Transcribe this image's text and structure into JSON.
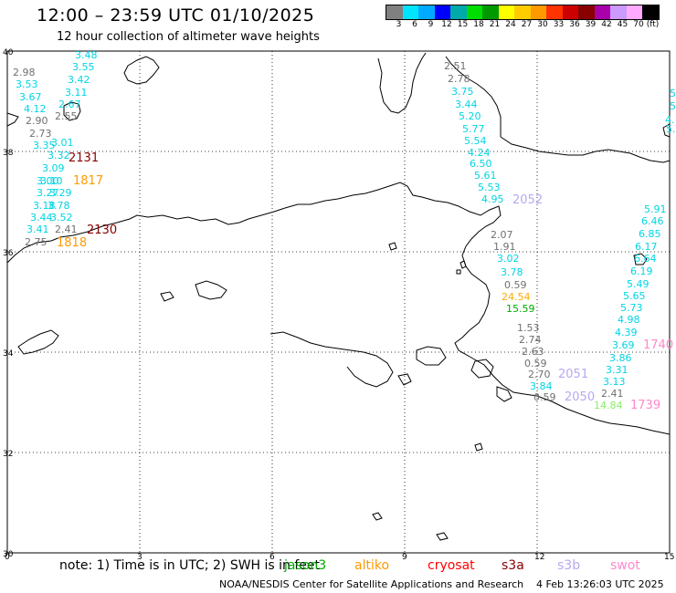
{
  "header": {
    "title": "12:00 – 23:59 UTC 01/10/2025",
    "subtitle": "12 hour collection of altimeter wave heights"
  },
  "colorbar": {
    "colors": [
      "#808080",
      "#00e5ff",
      "#00aaff",
      "#0000ff",
      "#00aaaa",
      "#00dd00",
      "#009900",
      "#ffff00",
      "#ffcc00",
      "#ff9900",
      "#ff3300",
      "#cc0000",
      "#880000",
      "#aa00aa",
      "#cc99ff",
      "#ffaaff",
      "#000000"
    ],
    "labels": [
      "3",
      "6",
      "9",
      "12",
      "15",
      "18",
      "21",
      "24",
      "27",
      "30",
      "33",
      "36",
      "39",
      "42",
      "45",
      "70",
      "(ft)"
    ]
  },
  "axes": {
    "x_ticks": [
      "0",
      "3",
      "6",
      "9",
      "12",
      "15"
    ],
    "y_ticks": [
      "40",
      "38",
      "36",
      "34",
      "32",
      "30"
    ]
  },
  "tracks": {
    "west": [
      {
        "v": "3.48",
        "c": "#00d5e5"
      },
      {
        "v": "3.55",
        "c": "#00d5e5"
      },
      {
        "v": "3.42",
        "c": "#00d5e5"
      },
      {
        "v": "3.11",
        "c": "#00d5e5"
      },
      {
        "v": "2.67",
        "c": "#00d5e5"
      },
      {
        "v": "2.55",
        "c": "#707070"
      },
      {
        "v": "2.73",
        "c": "#707070"
      },
      {
        "v": "2.98",
        "c": "#707070"
      },
      {
        "v": "3.53",
        "c": "#00d5e5"
      },
      {
        "v": "3.67",
        "c": "#00d5e5"
      },
      {
        "v": "4.12",
        "c": "#00d5e5"
      },
      {
        "v": "2.90",
        "c": "#707070"
      },
      {
        "v": "3.35",
        "c": "#00d5e5"
      },
      {
        "v": "3.01",
        "c": "#00d5e5"
      },
      {
        "v": "3.32",
        "c": "#00d5e5"
      },
      {
        "v": "3.09",
        "c": "#00d5e5"
      },
      {
        "v": "3.10",
        "c": "#00d5e5"
      },
      {
        "v": "3.00",
        "c": "#00d5e5"
      },
      {
        "v": "3.29",
        "c": "#00d5e5"
      },
      {
        "v": "3.27",
        "c": "#00d5e5"
      },
      {
        "v": "3.18",
        "c": "#00d5e5"
      },
      {
        "v": "3.78",
        "c": "#00d5e5"
      },
      {
        "v": "3.44",
        "c": "#00d5e5"
      },
      {
        "v": "3.52",
        "c": "#00d5e5"
      },
      {
        "v": "3.41",
        "c": "#00d5e5"
      },
      {
        "v": "2.41",
        "c": "#707070"
      },
      {
        "v": "2.75",
        "c": "#707070"
      }
    ],
    "central": [
      {
        "v": "2.51",
        "c": "#707070"
      },
      {
        "v": "2.78",
        "c": "#707070"
      },
      {
        "v": "3.75",
        "c": "#00d5e5"
      },
      {
        "v": "3.44",
        "c": "#00d5e5"
      },
      {
        "v": "5.20",
        "c": "#00d5e5"
      },
      {
        "v": "5.77",
        "c": "#00d5e5"
      },
      {
        "v": "5.54",
        "c": "#00d5e5"
      },
      {
        "v": "4.24",
        "c": "#00d5e5"
      },
      {
        "v": "6.50",
        "c": "#00d5e5"
      },
      {
        "v": "5.61",
        "c": "#00d5e5"
      },
      {
        "v": "5.53",
        "c": "#00d5e5"
      },
      {
        "v": "4.95",
        "c": "#00d5e5"
      }
    ],
    "coastal": [
      {
        "v": "2.07",
        "c": "#707070"
      },
      {
        "v": "1.91",
        "c": "#707070"
      },
      {
        "v": "3.02",
        "c": "#00d5e5"
      },
      {
        "v": "3.78",
        "c": "#00d5e5"
      },
      {
        "v": "0.59",
        "c": "#707070"
      },
      {
        "v": "24.54",
        "c": "#ffaa00"
      },
      {
        "v": "15.59",
        "c": "#00aa00"
      },
      {
        "v": "1.53",
        "c": "#707070"
      },
      {
        "v": "2.74",
        "c": "#707070"
      },
      {
        "v": "2.63",
        "c": "#707070"
      },
      {
        "v": "0.59",
        "c": "#707070"
      },
      {
        "v": "2.70",
        "c": "#707070"
      },
      {
        "v": "3.84",
        "c": "#00d5e5"
      },
      {
        "v": "0.59",
        "c": "#707070"
      },
      {
        "v": "2.41",
        "c": "#707070"
      },
      {
        "v": "14.84",
        "c": "#88ee66"
      }
    ],
    "east": [
      {
        "v": "5.91",
        "c": "#00d5e5"
      },
      {
        "v": "6.46",
        "c": "#00d5e5"
      },
      {
        "v": "6.85",
        "c": "#00d5e5"
      },
      {
        "v": "6.17",
        "c": "#00d5e5"
      },
      {
        "v": "6.64",
        "c": "#00d5e5"
      },
      {
        "v": "6.19",
        "c": "#00d5e5"
      },
      {
        "v": "5.49",
        "c": "#00d5e5"
      },
      {
        "v": "5.65",
        "c": "#00d5e5"
      },
      {
        "v": "5.73",
        "c": "#00d5e5"
      },
      {
        "v": "4.98",
        "c": "#00d5e5"
      },
      {
        "v": "4.39",
        "c": "#00d5e5"
      },
      {
        "v": "3.69",
        "c": "#00d5e5"
      },
      {
        "v": "3.86",
        "c": "#00d5e5"
      },
      {
        "v": "3.31",
        "c": "#00d5e5"
      },
      {
        "v": "3.13",
        "c": "#00d5e5"
      }
    ],
    "edge": [
      {
        "v": "5.",
        "c": "#00d5e5"
      },
      {
        "v": "5.",
        "c": "#00d5e5"
      },
      {
        "v": "4.",
        "c": "#00d5e5"
      },
      {
        "v": "5.",
        "c": "#00d5e5"
      }
    ]
  },
  "pass_times": [
    {
      "t": "2131",
      "c": "#880000"
    },
    {
      "t": "1817",
      "c": "#ff9900"
    },
    {
      "t": "2130",
      "c": "#880000"
    },
    {
      "t": "1818",
      "c": "#ff9900"
    },
    {
      "t": "2052",
      "c": "#b8a8f0"
    },
    {
      "t": "2051",
      "c": "#b8a8f0"
    },
    {
      "t": "2050",
      "c": "#b8a8f0"
    },
    {
      "t": "1740",
      "c": "#ff88cc"
    },
    {
      "t": "1739",
      "c": "#ff88cc"
    }
  ],
  "footer": {
    "note": "note: 1) Time is in UTC; 2) SWH is in feet",
    "satellites": [
      {
        "name": "jason3",
        "c": "#00aa00"
      },
      {
        "name": "altiko",
        "c": "#ff9900"
      },
      {
        "name": "cryosat",
        "c": "#ff0000"
      },
      {
        "name": "s3a",
        "c": "#880000"
      },
      {
        "name": "s3b",
        "c": "#b8a8f0"
      },
      {
        "name": "swot",
        "c": "#ff88cc"
      }
    ],
    "credit": "NOAA/NESDIS Center for Satellite Applications and Research",
    "timestamp": "4 Feb 13:26:03 UTC 2025"
  }
}
